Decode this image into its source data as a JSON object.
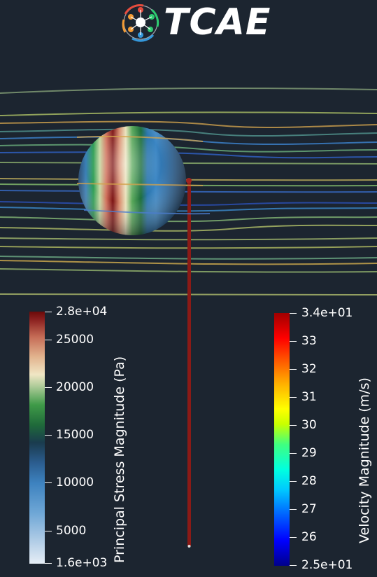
{
  "logo": {
    "text": "TCAE"
  },
  "colors": {
    "background": "#1c2530",
    "logo_red": "#e84c3d",
    "logo_orange": "#f39c35",
    "logo_green": "#2ecc71",
    "logo_blue": "#3498db"
  },
  "stress_legend": {
    "title": "Principal Stress Magnitude (Pa)",
    "max_label": "2.8e+04",
    "min_label": "1.6e+03",
    "ticks": [
      "25000",
      "20000",
      "15000",
      "10000",
      "5000"
    ]
  },
  "velocity_legend": {
    "title": "Velocity Magnitude (m/s)",
    "max_label": "3.4e+01",
    "min_label": "2.5e+01",
    "ticks": [
      "33",
      "32",
      "31",
      "30",
      "29",
      "28",
      "27",
      "26"
    ]
  }
}
